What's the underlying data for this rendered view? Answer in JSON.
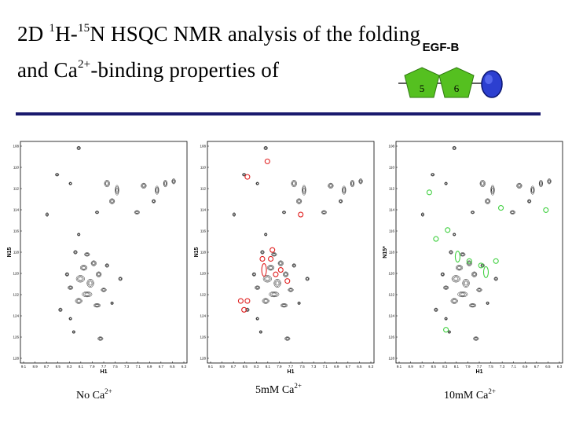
{
  "title": {
    "line1_prefix": "2D ",
    "sup_h": "1",
    "mid_h": "H-",
    "sup_n": "15",
    "line1_rest": "N HSQC NMR analysis of the folding",
    "line2_prefix": "and Ca",
    "sup_ca": "2+",
    "line2_rest": "-binding properties of"
  },
  "domain_diagram": {
    "label": "EGF-B",
    "module_1": "5",
    "module_2": "6",
    "colors": {
      "egf": "#55c020",
      "egf_dark": "#2f7a10",
      "sphere": "#2c3fd0",
      "rule": "#1a1a6e"
    }
  },
  "spectra": [
    {
      "caption_main": "No Ca",
      "caption_sup": "2+",
      "xlabel": "H1",
      "ylabel": "N15",
      "marker_color": "none",
      "markers": []
    },
    {
      "caption_main": "5mM Ca",
      "caption_sup": "2+",
      "xlabel": "H1",
      "ylabel": "N15",
      "marker_color": "#e02020"
    },
    {
      "caption_main": "10mM Ca",
      "caption_sup": "2+",
      "xlabel": "H1",
      "ylabel": "N15*",
      "marker_color": "#40d040"
    }
  ]
}
